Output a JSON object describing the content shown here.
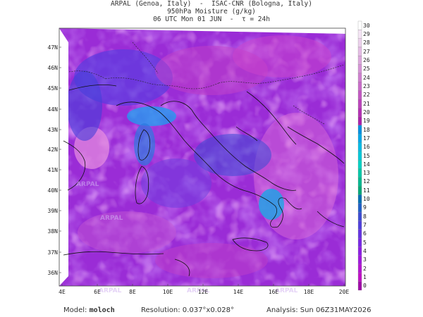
{
  "header": {
    "line1": "ARPAL (Genoa, Italy)  -  ISAC-CNR (Bologna, Italy)",
    "line2": "950hPa Moisture (g/kg)",
    "line3": "06 UTC Mon 01 JUN  -  τ = 24h"
  },
  "footer": {
    "model_label": "Model:",
    "model_value": "moloch",
    "resolution": "Resolution: 0.037°x0.028°",
    "analysis": "Analysis: Sun 06Z31MAY2026"
  },
  "axes": {
    "lat_labels": [
      "47N",
      "46N",
      "45N",
      "44N",
      "43N",
      "42N",
      "41N",
      "40N",
      "39N",
      "38N",
      "37N",
      "36N"
    ],
    "lon_labels": [
      "4E",
      "6E",
      "8E",
      "10E",
      "12E",
      "14E",
      "16E",
      "18E",
      "20E"
    ]
  },
  "colorbar": {
    "labels": [
      "30",
      "29",
      "28",
      "27",
      "26",
      "25",
      "24",
      "23",
      "22",
      "21",
      "20",
      "19",
      "18",
      "17",
      "16",
      "15",
      "14",
      "13",
      "12",
      "11",
      "10",
      "9",
      "8",
      "7",
      "6",
      "5",
      "4",
      "3",
      "2",
      "1",
      "0"
    ],
    "colors": [
      "#ffffff",
      "#f4e4f4",
      "#ecd0ec",
      "#e4bce4",
      "#dca8dc",
      "#d694d6",
      "#cf80cf",
      "#c96cc9",
      "#c258c2",
      "#bb44bb",
      "#b430b4",
      "#aa22aa",
      "#0090e0",
      "#00a8e8",
      "#00bce6",
      "#00c8d8",
      "#00d2c4",
      "#00c8a8",
      "#00b890",
      "#00a878",
      "#006fb4",
      "#2060c8",
      "#3c4cd4",
      "#5040dc",
      "#6434e2",
      "#7828e6",
      "#8c1ee4",
      "#a018de",
      "#b414d2",
      "#c010c6",
      "#a00ca8"
    ]
  },
  "watermark": "ARPAL"
}
